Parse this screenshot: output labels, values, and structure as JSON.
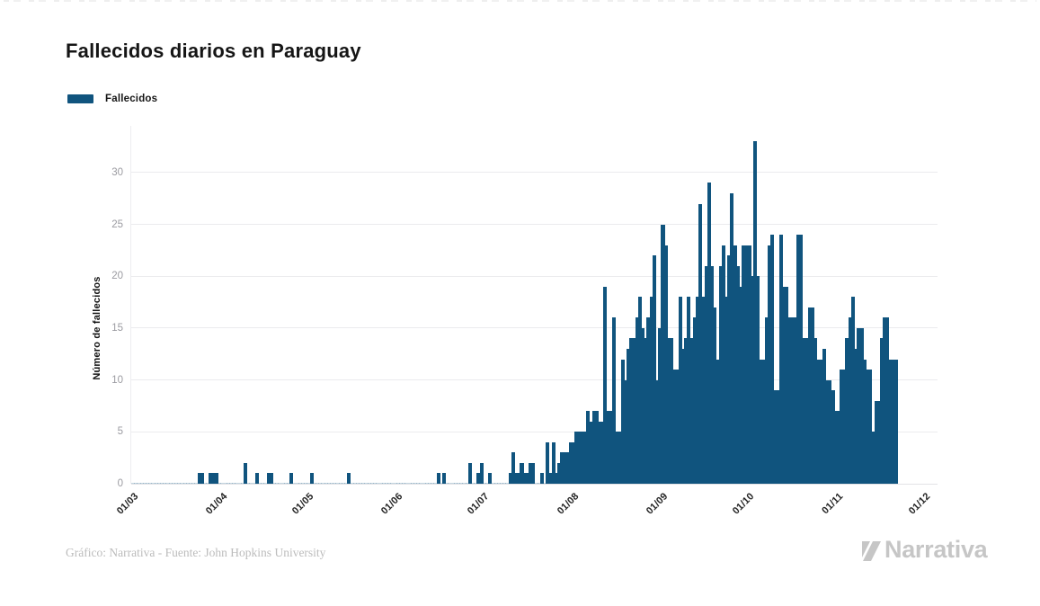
{
  "title": "Fallecidos diarios en Paraguay",
  "legend": {
    "label": "Fallecidos",
    "color": "#10547E"
  },
  "footer": {
    "source": "Gráfico: Narrativa - Fuente: John Hopkins University",
    "logo_text": "Narrativa"
  },
  "colors": {
    "bar": "#10547E",
    "grid": "#ebebee",
    "axis_line": "#e2e2e6",
    "y_tick_label": "#9b9ba1",
    "x_tick_label": "#222222",
    "footer_text": "#bcbcbc",
    "logo_gray": "#c6c6c6"
  },
  "chart_data": {
    "type": "bar",
    "title": "Fallecidos diarios en Paraguay",
    "xlabel": "",
    "ylabel": "Número de fallecidos",
    "ylim": [
      0,
      34.5
    ],
    "y_ticks": [
      0,
      5,
      10,
      15,
      20,
      25,
      30
    ],
    "grid": "horizontal-only",
    "legend_position": "top-left",
    "x_tick_labels": [
      "01/03",
      "01/04",
      "01/05",
      "01/06",
      "01/07",
      "01/08",
      "01/09",
      "01/10",
      "01/11",
      "01/12"
    ],
    "x_tick_day_index": [
      0,
      31,
      61,
      92,
      122,
      153,
      184,
      214,
      245,
      275
    ],
    "axis_total_days": 280,
    "x_start_label": "01/03",
    "series": [
      {
        "name": "Fallecidos",
        "color": "#10547E",
        "values": [
          0,
          0,
          0,
          0,
          0,
          0,
          0,
          0,
          0,
          0,
          0,
          0,
          0,
          0,
          0,
          0,
          0,
          0,
          0,
          0,
          0,
          0,
          0,
          1,
          1,
          0,
          0,
          1,
          1,
          1,
          0,
          0,
          0,
          0,
          0,
          0,
          0,
          0,
          0,
          2,
          0,
          0,
          0,
          1,
          0,
          0,
          0,
          1,
          1,
          0,
          0,
          0,
          0,
          0,
          0,
          1,
          0,
          0,
          0,
          0,
          0,
          0,
          1,
          0,
          0,
          0,
          0,
          0,
          0,
          0,
          0,
          0,
          0,
          0,
          0,
          1,
          0,
          0,
          0,
          0,
          0,
          0,
          0,
          0,
          0,
          0,
          0,
          0,
          0,
          0,
          0,
          0,
          0,
          0,
          0,
          0,
          0,
          0,
          0,
          0,
          0,
          0,
          0,
          0,
          0,
          0,
          1,
          0,
          1,
          0,
          0,
          0,
          0,
          0,
          0,
          0,
          0,
          2,
          0,
          0,
          1,
          2,
          0,
          0,
          1,
          0,
          0,
          0,
          0,
          0,
          0,
          1,
          3,
          1,
          1,
          2,
          1,
          1,
          2,
          2,
          0,
          0,
          1,
          0,
          4,
          1,
          4,
          1,
          2,
          3,
          3,
          3,
          4,
          4,
          5,
          5,
          5,
          5,
          7,
          6,
          7,
          7,
          6,
          6,
          19,
          7,
          7,
          16,
          5,
          5,
          12,
          10,
          13,
          14,
          14,
          16,
          18,
          15,
          14,
          16,
          18,
          22,
          10,
          15,
          25,
          23,
          14,
          14,
          11,
          11,
          18,
          13,
          14,
          18,
          14,
          16,
          18,
          27,
          18,
          21,
          29,
          21,
          17,
          12,
          21,
          23,
          18,
          22,
          28,
          23,
          21,
          19,
          23,
          23,
          23,
          20,
          33,
          20,
          12,
          12,
          16,
          23,
          24,
          9,
          9,
          24,
          19,
          19,
          16,
          16,
          16,
          24,
          24,
          14,
          14,
          17,
          17,
          14,
          12,
          12,
          13,
          10,
          10,
          9,
          7,
          7,
          11,
          11,
          14,
          16,
          18,
          13,
          15,
          15,
          12,
          11,
          11,
          5,
          8,
          8,
          14,
          16,
          16,
          12,
          12,
          12
        ]
      }
    ]
  }
}
